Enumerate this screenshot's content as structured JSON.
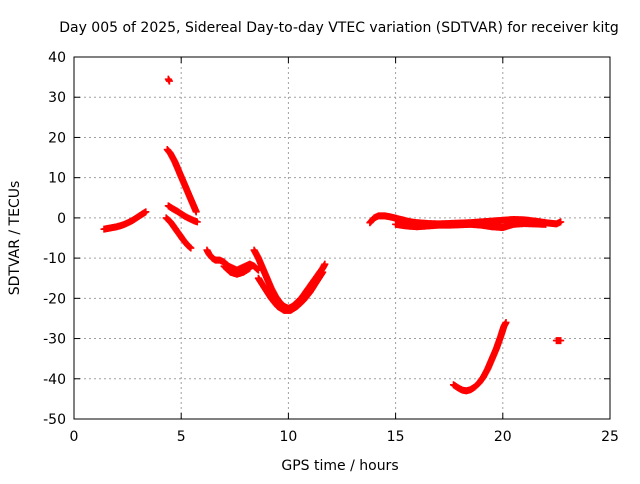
{
  "chart_data": {
    "type": "scatter",
    "title": "Day 005 of 2025, Sidereal Day-to-day VTEC variation (SDTVAR) for receiver kitg",
    "xlabel": "GPS time / hours",
    "ylabel": "SDTVAR / TECUs",
    "xlim": [
      0,
      25
    ],
    "ylim": [
      -50,
      40
    ],
    "xticks": [
      0,
      5,
      10,
      15,
      20,
      25
    ],
    "yticks": [
      -50,
      -40,
      -30,
      -20,
      -10,
      0,
      10,
      20,
      30,
      40
    ],
    "grid": true,
    "point_color": "#ff0000",
    "series": [
      {
        "name": "arc-1",
        "points": [
          [
            1.4,
            -2.8
          ],
          [
            1.6,
            -2.6
          ],
          [
            1.8,
            -2.4
          ],
          [
            2.0,
            -2.2
          ],
          [
            2.2,
            -1.9
          ],
          [
            2.4,
            -1.5
          ],
          [
            2.6,
            -1.0
          ],
          [
            2.8,
            -0.4
          ],
          [
            3.0,
            0.3
          ],
          [
            3.2,
            1.0
          ],
          [
            3.35,
            1.5
          ]
        ]
      },
      {
        "name": "arc-2",
        "points": [
          [
            4.4,
            34.5
          ],
          [
            4.45,
            34.0
          ]
        ]
      },
      {
        "name": "arc-3",
        "points": [
          [
            4.35,
            17.0
          ],
          [
            4.5,
            16.0
          ],
          [
            4.7,
            14.0
          ],
          [
            4.9,
            11.5
          ],
          [
            5.1,
            9.0
          ],
          [
            5.3,
            6.5
          ],
          [
            5.5,
            4.0
          ],
          [
            5.7,
            1.5
          ]
        ]
      },
      {
        "name": "arc-4",
        "points": [
          [
            4.4,
            3.0
          ],
          [
            4.6,
            2.3
          ],
          [
            4.8,
            1.7
          ],
          [
            5.0,
            1.0
          ],
          [
            5.2,
            0.3
          ],
          [
            5.4,
            -0.2
          ],
          [
            5.6,
            -0.7
          ],
          [
            5.75,
            -1.0
          ]
        ]
      },
      {
        "name": "arc-5",
        "points": [
          [
            4.3,
            0.0
          ],
          [
            4.5,
            -1.0
          ],
          [
            4.7,
            -2.5
          ],
          [
            4.9,
            -4.0
          ],
          [
            5.1,
            -5.5
          ],
          [
            5.3,
            -6.8
          ],
          [
            5.45,
            -7.5
          ]
        ]
      },
      {
        "name": "arc-6",
        "points": [
          [
            6.2,
            -8.0
          ],
          [
            6.3,
            -9.0
          ],
          [
            6.45,
            -10.0
          ],
          [
            6.6,
            -10.5
          ],
          [
            6.8,
            -10.5
          ],
          [
            7.0,
            -11.0
          ],
          [
            7.2,
            -12.0
          ],
          [
            7.4,
            -12.5
          ],
          [
            7.6,
            -13.0
          ],
          [
            7.8,
            -12.5
          ],
          [
            8.0,
            -12.0
          ],
          [
            8.2,
            -11.5
          ],
          [
            8.4,
            -12.0
          ],
          [
            8.6,
            -13.0
          ]
        ]
      },
      {
        "name": "arc-7",
        "points": [
          [
            7.0,
            -12.0
          ],
          [
            7.3,
            -13.5
          ],
          [
            7.6,
            -14.0
          ],
          [
            7.9,
            -13.5
          ],
          [
            8.2,
            -12.5
          ]
        ]
      },
      {
        "name": "arc-8",
        "points": [
          [
            8.4,
            -8.0
          ],
          [
            8.6,
            -10.0
          ],
          [
            8.8,
            -12.5
          ],
          [
            9.0,
            -15.0
          ],
          [
            9.2,
            -17.5
          ],
          [
            9.4,
            -19.5
          ],
          [
            9.6,
            -21.0
          ],
          [
            9.8,
            -22.0
          ],
          [
            10.0,
            -22.5
          ],
          [
            10.2,
            -22.0
          ],
          [
            10.4,
            -21.0
          ],
          [
            10.6,
            -20.0
          ],
          [
            10.8,
            -18.5
          ],
          [
            11.0,
            -17.0
          ],
          [
            11.2,
            -15.5
          ],
          [
            11.4,
            -14.0
          ],
          [
            11.6,
            -12.5
          ],
          [
            11.7,
            -11.5
          ]
        ]
      },
      {
        "name": "arc-9",
        "points": [
          [
            8.6,
            -15.0
          ],
          [
            8.9,
            -17.5
          ],
          [
            9.2,
            -20.0
          ],
          [
            9.5,
            -22.0
          ],
          [
            9.8,
            -23.0
          ],
          [
            10.1,
            -23.0
          ],
          [
            10.4,
            -22.0
          ],
          [
            10.7,
            -20.5
          ],
          [
            11.0,
            -18.5
          ],
          [
            11.3,
            -16.0
          ],
          [
            11.6,
            -13.5
          ]
        ]
      },
      {
        "name": "arc-10",
        "points": [
          [
            13.8,
            -1.2
          ],
          [
            14.0,
            0.0
          ],
          [
            14.2,
            0.5
          ],
          [
            14.5,
            0.5
          ],
          [
            14.8,
            0.2
          ],
          [
            15.1,
            -0.2
          ],
          [
            15.4,
            -0.6
          ],
          [
            15.7,
            -1.0
          ],
          [
            16.0,
            -1.2
          ],
          [
            16.5,
            -1.4
          ],
          [
            17.0,
            -1.5
          ],
          [
            17.5,
            -1.4
          ],
          [
            18.0,
            -1.3
          ],
          [
            18.5,
            -1.2
          ],
          [
            19.0,
            -1.0
          ],
          [
            19.5,
            -0.8
          ],
          [
            20.0,
            -0.6
          ],
          [
            20.5,
            -0.4
          ],
          [
            21.0,
            -0.5
          ],
          [
            21.5,
            -0.8
          ],
          [
            22.0,
            -1.2
          ],
          [
            22.5,
            -1.5
          ],
          [
            22.7,
            -1.0
          ]
        ]
      },
      {
        "name": "arc-11",
        "points": [
          [
            15.0,
            -1.6
          ],
          [
            15.5,
            -2.0
          ],
          [
            16.0,
            -2.2
          ],
          [
            16.5,
            -2.0
          ],
          [
            17.0,
            -1.8
          ],
          [
            17.5,
            -1.8
          ],
          [
            18.0,
            -1.7
          ],
          [
            18.5,
            -1.6
          ],
          [
            19.0,
            -1.8
          ],
          [
            19.5,
            -2.2
          ],
          [
            20.0,
            -2.4
          ],
          [
            20.5,
            -1.6
          ],
          [
            21.0,
            -1.4
          ],
          [
            21.5,
            -1.5
          ],
          [
            22.0,
            -1.6
          ]
        ]
      },
      {
        "name": "arc-12",
        "points": [
          [
            17.7,
            -41.5
          ],
          [
            17.9,
            -42.2
          ],
          [
            18.1,
            -42.8
          ],
          [
            18.3,
            -43.0
          ],
          [
            18.5,
            -42.7
          ],
          [
            18.7,
            -42.0
          ],
          [
            18.9,
            -41.0
          ],
          [
            19.1,
            -39.5
          ],
          [
            19.3,
            -37.5
          ],
          [
            19.5,
            -35.0
          ],
          [
            19.7,
            -32.5
          ],
          [
            19.9,
            -29.5
          ],
          [
            20.05,
            -27.0
          ],
          [
            20.15,
            -26.0
          ]
        ]
      },
      {
        "name": "arc-13",
        "points": [
          [
            22.5,
            -30.5
          ],
          [
            22.6,
            -30.5
          ],
          [
            22.7,
            -30.5
          ]
        ]
      }
    ]
  }
}
